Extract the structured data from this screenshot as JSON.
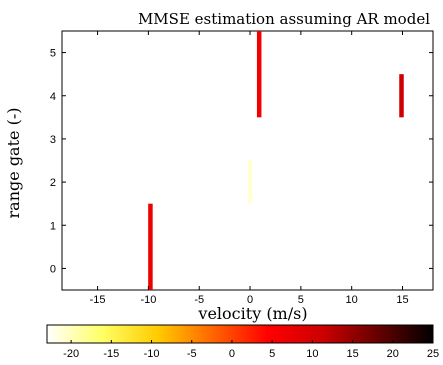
{
  "chart_data": {
    "type": "heatmap",
    "title": "MMSE estimation assuming AR model",
    "xlabel": "velocity (m/s)",
    "ylabel": "range gate (-)",
    "xlim": [
      -18.5,
      18
    ],
    "ylim": [
      -0.5,
      5.5
    ],
    "xticks": [
      -15,
      -10,
      -5,
      0,
      5,
      10,
      15
    ],
    "yticks": [
      0,
      1,
      2,
      3,
      4,
      5
    ],
    "grid": false,
    "cells": [
      {
        "x": -9.8,
        "y_from": -0.5,
        "y_to": 1.5,
        "value": 7
      },
      {
        "x": 0.0,
        "y_from": 1.5,
        "y_to": 2.5,
        "value": -21
      },
      {
        "x": 0.9,
        "y_from": 3.5,
        "y_to": 5.5,
        "value": 6
      },
      {
        "x": 14.9,
        "y_from": 3.5,
        "y_to": 4.5,
        "value": 11
      }
    ],
    "colorbar": {
      "range": [
        -23,
        25
      ],
      "ticks": [
        -20,
        -15,
        -10,
        -5,
        0,
        5,
        10,
        15,
        20,
        25
      ],
      "colormap": "hot-reversed",
      "colors": [
        "#ffffff",
        "#ffff66",
        "#ffcc00",
        "#ff6600",
        "#ff0000",
        "#cc0000",
        "#660000",
        "#000000"
      ]
    }
  }
}
